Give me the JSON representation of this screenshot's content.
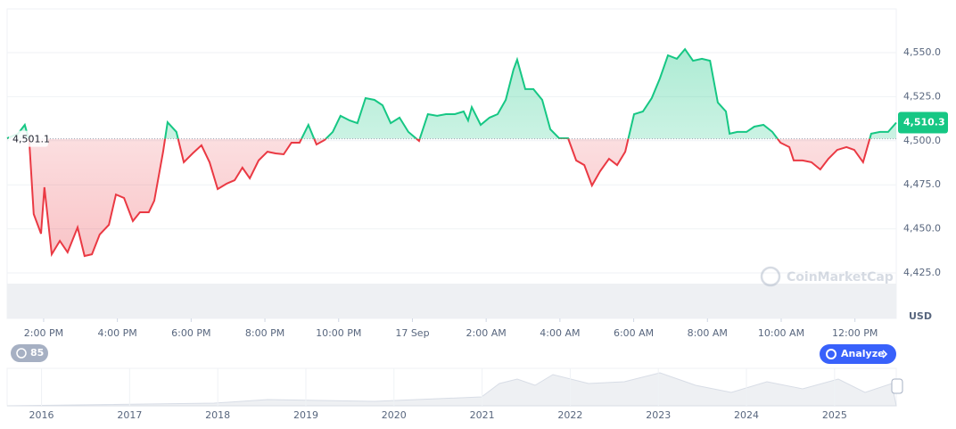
{
  "chart_data": {
    "type": "baseline-line",
    "x": [
      13.01,
      13.3,
      13.49,
      13.61,
      13.73,
      13.93,
      14.02,
      14.22,
      14.44,
      14.65,
      14.92,
      15.11,
      15.31,
      15.52,
      15.77,
      15.96,
      16.18,
      16.42,
      16.61,
      16.85,
      17.0,
      17.24,
      17.36,
      17.6,
      17.8,
      18.04,
      18.28,
      18.5,
      18.72,
      18.96,
      19.18,
      19.39,
      19.59,
      19.83,
      20.07,
      20.29,
      20.51,
      20.72,
      20.94,
      21.18,
      21.4,
      21.62,
      21.84,
      22.05,
      22.3,
      22.51,
      22.73,
      22.97,
      23.19,
      23.41,
      23.65,
      23.89,
      24.18,
      24.42,
      24.67,
      24.91,
      25.15,
      25.39,
      25.51,
      25.61,
      25.85,
      26.09,
      26.31,
      26.53,
      26.74,
      26.84,
      27.06,
      27.28,
      27.52,
      27.74,
      27.98,
      28.22,
      28.44,
      28.66,
      28.87,
      29.09,
      29.33,
      29.55,
      29.77,
      30.01,
      30.25,
      30.49,
      30.71,
      30.93,
      31.17,
      31.39,
      31.61,
      31.85,
      32.07,
      32.28,
      32.5,
      32.6,
      32.81,
      33.06,
      33.27,
      33.52,
      33.76,
      33.98,
      34.22,
      34.34,
      34.58,
      34.82,
      35.06,
      35.28,
      35.52,
      35.77,
      35.98,
      36.22,
      36.44,
      36.68,
      36.9,
      37.12
    ],
    "values": [
      4501.4,
      4503.9,
      4509.0,
      4499.9,
      4458.4,
      4447.3,
      4473.6,
      4435.6,
      4443.2,
      4436.7,
      4450.8,
      4434.6,
      4435.6,
      4446.8,
      4452.3,
      4469.5,
      4467.5,
      4454.4,
      4459.4,
      4459.4,
      4466.0,
      4493.8,
      4510.5,
      4505.0,
      4487.8,
      4492.8,
      4497.4,
      4487.8,
      4472.6,
      4475.6,
      4477.6,
      4484.7,
      4478.7,
      4488.8,
      4493.8,
      4492.8,
      4492.3,
      4498.9,
      4498.9,
      4509.0,
      4497.9,
      4500.4,
      4505.0,
      4514.1,
      4511.5,
      4510.0,
      4524.2,
      4523.2,
      4520.1,
      4510.0,
      4513.1,
      4505.0,
      4499.9,
      4515.1,
      4514.1,
      4515.1,
      4515.1,
      4516.6,
      4511.5,
      4519.1,
      4509.0,
      4513.1,
      4515.1,
      4523.2,
      4540.4,
      4546.0,
      4529.3,
      4529.3,
      4523.2,
      4506.5,
      4501.4,
      4501.4,
      4488.8,
      4486.2,
      4474.6,
      4482.7,
      4489.8,
      4486.2,
      4493.8,
      4515.1,
      4516.6,
      4524.2,
      4535.3,
      4548.5,
      4546.5,
      4552.0,
      4545.4,
      4546.5,
      4545.4,
      4521.7,
      4516.6,
      4504.0,
      4505.0,
      4505.0,
      4508.0,
      4509.0,
      4505.0,
      4498.9,
      4496.4,
      4488.8,
      4488.8,
      4487.8,
      4483.7,
      4489.8,
      4494.8,
      4496.4,
      4494.8,
      4487.8,
      4504.0,
      4505.0,
      4505.0,
      4510.3
    ],
    "color_up": "#16c784",
    "color_down": "#ea3943",
    "baseline": {
      "value": 4501.1,
      "label": "4,501.1"
    },
    "last_price_label": "4,510.3",
    "xlim": [
      13.01,
      37.12
    ],
    "ylim": [
      4399.2,
      4574.8
    ],
    "xticks": [
      {
        "value": 14,
        "label": "2:00 PM"
      },
      {
        "value": 16,
        "label": "4:00 PM"
      },
      {
        "value": 18,
        "label": "6:00 PM"
      },
      {
        "value": 20,
        "label": "8:00 PM"
      },
      {
        "value": 22,
        "label": "10:00 PM"
      },
      {
        "value": 24,
        "label": "17 Sep"
      },
      {
        "value": 26,
        "label": "2:00 AM"
      },
      {
        "value": 28,
        "label": "4:00 AM"
      },
      {
        "value": 30,
        "label": "6:00 AM"
      },
      {
        "value": 32,
        "label": "8:00 AM"
      },
      {
        "value": 34,
        "label": "10:00 AM"
      },
      {
        "value": 36,
        "label": "12:00 PM"
      }
    ],
    "yticks": [
      {
        "value": 4425,
        "label": "4,425.0"
      },
      {
        "value": 4450,
        "label": "4,450.0"
      },
      {
        "value": 4475,
        "label": "4,475.0"
      },
      {
        "value": 4500,
        "label": "4,500.0"
      },
      {
        "value": 4525,
        "label": "4,525.0"
      },
      {
        "value": 4550,
        "label": "4,550.0"
      }
    ],
    "y_unit": "USD",
    "grid": true,
    "watermark": "CoinMarketCap",
    "navigator": {
      "xlim": [
        2015.61,
        2025.7
      ],
      "xticks": [
        2016,
        2017,
        2018,
        2019,
        2020,
        2021,
        2022,
        2023,
        2024,
        2025
      ]
    }
  },
  "controls": {
    "history_badge": "85",
    "analyze_button": "Analyze"
  }
}
